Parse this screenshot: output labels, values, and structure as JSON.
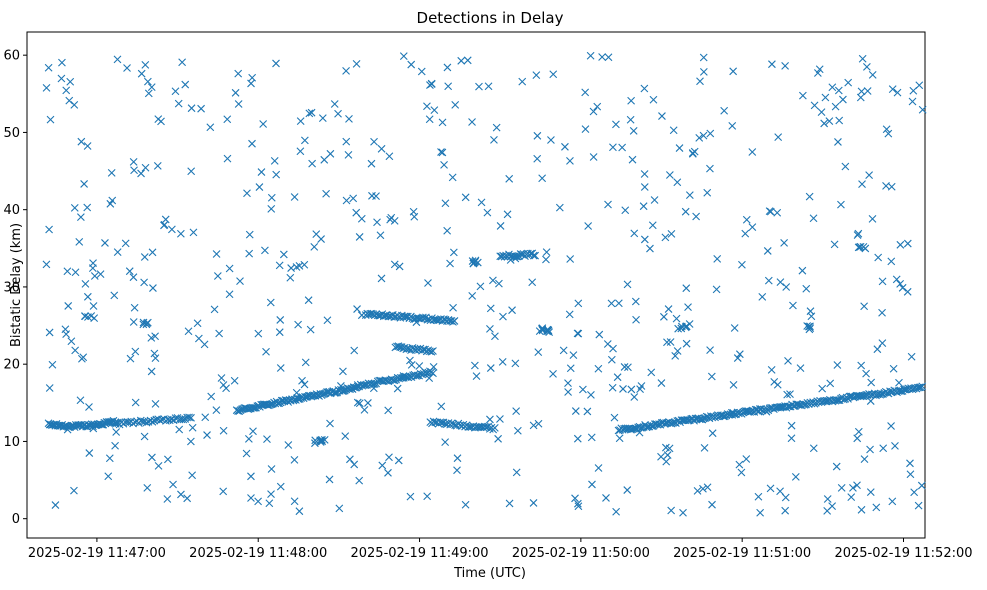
{
  "chart_data": {
    "type": "scatter",
    "title": "Detections in Delay",
    "xlabel": "Time (UTC)",
    "ylabel": "Bistatic Delay (km)",
    "marker": "x",
    "color": "#1f77b4",
    "x_unit": "seconds after 2025-02-19 11:46:00",
    "xlim": [
      34,
      368
    ],
    "ylim": [
      -2.5,
      63
    ],
    "x_ticks": [
      {
        "value": 60,
        "label": "2025-02-19 11:47:00"
      },
      {
        "value": 120,
        "label": "2025-02-19 11:48:00"
      },
      {
        "value": 180,
        "label": "2025-02-19 11:49:00"
      },
      {
        "value": 240,
        "label": "2025-02-19 11:50:00"
      },
      {
        "value": 300,
        "label": "2025-02-19 11:51:00"
      },
      {
        "value": 360,
        "label": "2025-02-19 11:52:00"
      }
    ],
    "y_ticks": [
      0,
      10,
      20,
      30,
      40,
      50,
      60
    ],
    "tracks": [
      {
        "x_start": 42,
        "x_end": 67,
        "y_start": 12.2,
        "y_end": 12.6,
        "y_mid": 11.8,
        "count": 60
      },
      {
        "x_start": 67,
        "x_end": 95,
        "y_start": 12.3,
        "y_end": 13.0,
        "count": 40
      },
      {
        "x_start": 112,
        "x_end": 157,
        "y_start": 14.0,
        "y_end": 17.0,
        "count": 95
      },
      {
        "x_start": 157,
        "x_end": 185,
        "y_start": 17.2,
        "y_end": 19.0,
        "count": 50
      },
      {
        "x_start": 160,
        "x_end": 193,
        "y_start": 26.5,
        "y_end": 25.6,
        "count": 60
      },
      {
        "x_start": 171,
        "x_end": 185,
        "y_start": 22.2,
        "y_end": 21.7,
        "count": 25
      },
      {
        "x_start": 184,
        "x_end": 208,
        "y_start": 12.5,
        "y_end": 11.7,
        "count": 40
      },
      {
        "x_start": 210,
        "x_end": 223,
        "y_start": 34.0,
        "y_end": 34.2,
        "count": 25
      },
      {
        "x_start": 254,
        "x_end": 368,
        "y_start": 11.5,
        "y_end": 17.0,
        "count": 220
      }
    ],
    "short_clusters": [
      {
        "x": 57,
        "y": 26.0,
        "count": 5
      },
      {
        "x": 77,
        "y": 25.3,
        "count": 5
      },
      {
        "x": 143,
        "y": 10.0,
        "count": 8
      },
      {
        "x": 200,
        "y": 33.2,
        "count": 8
      },
      {
        "x": 226,
        "y": 24.5,
        "count": 10
      },
      {
        "x": 278,
        "y": 24.8,
        "count": 6
      },
      {
        "x": 325,
        "y": 24.7,
        "count": 5
      },
      {
        "x": 345,
        "y": 35.0,
        "count": 5
      }
    ],
    "scattered_noise": {
      "count": 620,
      "x_range": [
        41,
        368
      ],
      "y_range": [
        0.5,
        60
      ]
    }
  }
}
